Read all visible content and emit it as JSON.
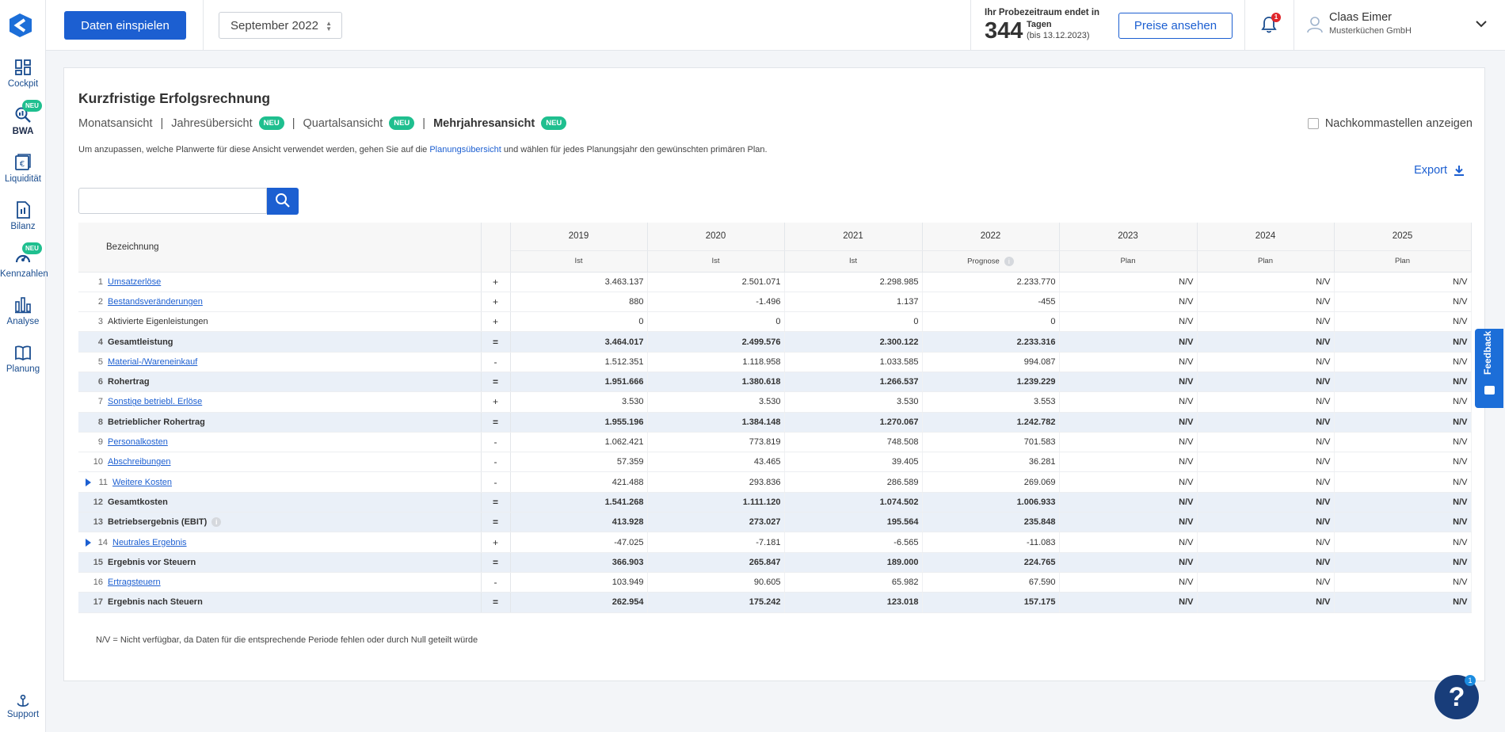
{
  "sidebar": {
    "items": [
      {
        "label": "Cockpit",
        "icon": "dashboard-icon"
      },
      {
        "label": "BWA",
        "icon": "search-chart-icon",
        "badge": "NEU"
      },
      {
        "label": "Liquidität",
        "icon": "cash-icon"
      },
      {
        "label": "Bilanz",
        "icon": "document-icon"
      },
      {
        "label": "Kennzahlen",
        "icon": "gauge-icon",
        "badge": "NEU"
      },
      {
        "label": "Analyse",
        "icon": "bar-chart-icon"
      },
      {
        "label": "Planung",
        "icon": "book-icon"
      }
    ],
    "support": "Support"
  },
  "header": {
    "import_button": "Daten einspielen",
    "month": "September 2022",
    "trial_title": "Ihr Probezeitraum endet in",
    "trial_days": "344",
    "trial_unit": "Tagen",
    "trial_until": "(bis 13.12.2023)",
    "prices_button": "Preise ansehen",
    "notification_count": "1",
    "user_name": "Claas Eimer",
    "user_company": "Musterküchen GmbH"
  },
  "main": {
    "title": "Kurzfristige Erfolgsrechnung",
    "tabs": [
      {
        "label": "Monatsansicht"
      },
      {
        "label": "Jahresübersicht",
        "badge": "NEU"
      },
      {
        "label": "Quartalsansicht",
        "badge": "NEU"
      },
      {
        "label": "Mehrjahresansicht",
        "badge": "NEU"
      }
    ],
    "decimals_label": "Nachkommastellen anzeigen",
    "info_pre": "Um anzupassen, welche Planwerte für diese Ansicht verwendet werden, gehen Sie auf die ",
    "info_link": "Planungsübersicht",
    "info_post": " und wählen für jedes Planungsjahr den gewünschten primären Plan.",
    "export_label": "Export",
    "search_placeholder": "",
    "footnote": "N/V = Nicht verfügbar, da Daten für die entsprechende Periode fehlen oder durch Null geteilt würde"
  },
  "table": {
    "name_header": "Bezeichnung",
    "columns": [
      {
        "year": "2019",
        "type": "Ist"
      },
      {
        "year": "2020",
        "type": "Ist"
      },
      {
        "year": "2021",
        "type": "Ist"
      },
      {
        "year": "2022",
        "type": "Prognose"
      },
      {
        "year": "2023",
        "type": "Plan"
      },
      {
        "year": "2024",
        "type": "Plan"
      },
      {
        "year": "2025",
        "type": "Plan"
      }
    ],
    "rows": [
      {
        "num": "1",
        "name": "Umsatzerlöse",
        "sign": "+",
        "values": [
          "3.463.137",
          "2.501.071",
          "2.298.985",
          "2.233.770",
          "N/V",
          "N/V",
          "N/V"
        ]
      },
      {
        "num": "2",
        "name": "Bestandsveränderungen",
        "sign": "+",
        "values": [
          "880",
          "-1.496",
          "1.137",
          "-455",
          "N/V",
          "N/V",
          "N/V"
        ]
      },
      {
        "num": "3",
        "name": "Aktivierte Eigenleistungen",
        "sign": "+",
        "values": [
          "0",
          "0",
          "0",
          "0",
          "N/V",
          "N/V",
          "N/V"
        ]
      },
      {
        "num": "4",
        "name": "Gesamtleistung",
        "sign": "=",
        "values": [
          "3.464.017",
          "2.499.576",
          "2.300.122",
          "2.233.316",
          "N/V",
          "N/V",
          "N/V"
        ]
      },
      {
        "num": "5",
        "name": "Material-/Wareneinkauf",
        "sign": "-",
        "values": [
          "1.512.351",
          "1.118.958",
          "1.033.585",
          "994.087",
          "N/V",
          "N/V",
          "N/V"
        ]
      },
      {
        "num": "6",
        "name": "Rohertrag",
        "sign": "=",
        "values": [
          "1.951.666",
          "1.380.618",
          "1.266.537",
          "1.239.229",
          "N/V",
          "N/V",
          "N/V"
        ]
      },
      {
        "num": "7",
        "name": "Sonstige betriebl. Erlöse",
        "sign": "+",
        "values": [
          "3.530",
          "3.530",
          "3.530",
          "3.553",
          "N/V",
          "N/V",
          "N/V"
        ]
      },
      {
        "num": "8",
        "name": "Betrieblicher Rohertrag",
        "sign": "=",
        "values": [
          "1.955.196",
          "1.384.148",
          "1.270.067",
          "1.242.782",
          "N/V",
          "N/V",
          "N/V"
        ]
      },
      {
        "num": "9",
        "name": "Personalkosten",
        "sign": "-",
        "values": [
          "1.062.421",
          "773.819",
          "748.508",
          "701.583",
          "N/V",
          "N/V",
          "N/V"
        ]
      },
      {
        "num": "10",
        "name": "Abschreibungen",
        "sign": "-",
        "values": [
          "57.359",
          "43.465",
          "39.405",
          "36.281",
          "N/V",
          "N/V",
          "N/V"
        ]
      },
      {
        "num": "11",
        "name": "Weitere Kosten",
        "sign": "-",
        "values": [
          "421.488",
          "293.836",
          "286.589",
          "269.069",
          "N/V",
          "N/V",
          "N/V"
        ]
      },
      {
        "num": "12",
        "name": "Gesamtkosten",
        "sign": "=",
        "values": [
          "1.541.268",
          "1.111.120",
          "1.074.502",
          "1.006.933",
          "N/V",
          "N/V",
          "N/V"
        ]
      },
      {
        "num": "13",
        "name": "Betriebsergebnis (EBIT)",
        "sign": "=",
        "values": [
          "413.928",
          "273.027",
          "195.564",
          "235.848",
          "N/V",
          "N/V",
          "N/V"
        ]
      },
      {
        "num": "14",
        "name": "Neutrales Ergebnis",
        "sign": "+",
        "values": [
          "-47.025",
          "-7.181",
          "-6.565",
          "-11.083",
          "N/V",
          "N/V",
          "N/V"
        ]
      },
      {
        "num": "15",
        "name": "Ergebnis vor Steuern",
        "sign": "=",
        "values": [
          "366.903",
          "265.847",
          "189.000",
          "224.765",
          "N/V",
          "N/V",
          "N/V"
        ]
      },
      {
        "num": "16",
        "name": "Ertragsteuern",
        "sign": "-",
        "values": [
          "103.949",
          "90.605",
          "65.982",
          "67.590",
          "N/V",
          "N/V",
          "N/V"
        ]
      },
      {
        "num": "17",
        "name": "Ergebnis nach Steuern",
        "sign": "=",
        "values": [
          "262.954",
          "175.242",
          "123.018",
          "157.175",
          "N/V",
          "N/V",
          "N/V"
        ]
      }
    ]
  },
  "feedback_label": "Feedback",
  "help_badge": "1",
  "colors": {
    "primary": "#1c5fd1",
    "badge": "#1fbf8f",
    "sum_row": "#eaf0f8",
    "help": "#183d7a"
  }
}
